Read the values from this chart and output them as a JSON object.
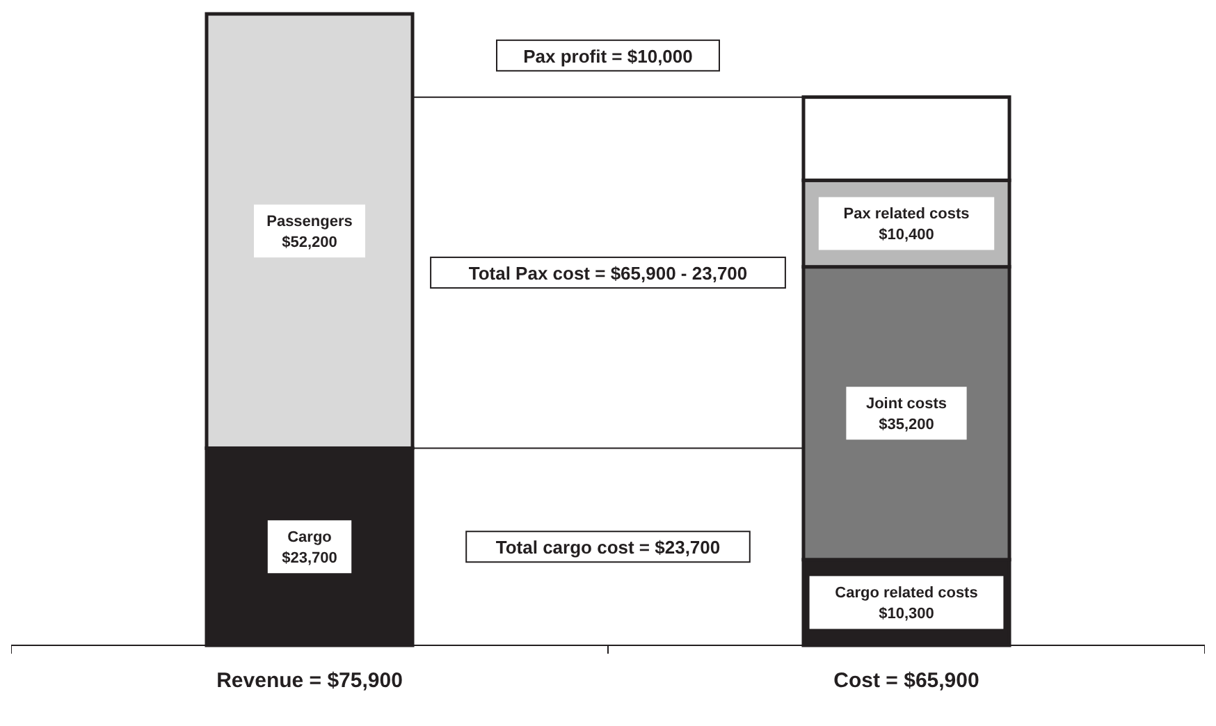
{
  "chart_data": {
    "type": "bar",
    "stacked": true,
    "categories": [
      "Revenue = $75,900",
      "Cost = $65,900"
    ],
    "ylim": [
      0,
      75900
    ],
    "tick_labels": "x",
    "series": [
      {
        "name": "Cargo",
        "color": "#231f20",
        "values": [
          23700,
          null
        ],
        "value_labels": [
          "$23,700",
          null
        ]
      },
      {
        "name": "Cargo related costs",
        "color": "#231f20",
        "values": [
          null,
          10300
        ],
        "value_labels": [
          null,
          "$10,300"
        ]
      },
      {
        "name": "Passengers",
        "color": "#d9d9d9",
        "values": [
          52200,
          null
        ],
        "value_labels": [
          "$52,200",
          null
        ]
      },
      {
        "name": "Joint costs",
        "color": "#7a7a7a",
        "values": [
          null,
          35200
        ],
        "value_labels": [
          null,
          "$35,200"
        ]
      },
      {
        "name": "Pax related costs",
        "color": "#b8b8b8",
        "values": [
          null,
          10400
        ],
        "value_labels": [
          null,
          "$10,400"
        ]
      },
      {
        "color": "#ffffff",
        "values": [
          null,
          10000
        ]
      }
    ],
    "ref_lines": [
      {
        "axis": "y",
        "value": 65900
      },
      {
        "axis": "y",
        "value": 23700
      }
    ],
    "annotations": [
      "Pax profit = $10,000",
      "Total Pax cost = $65,900 - 23,700",
      "Total cargo cost = $23,700"
    ]
  }
}
